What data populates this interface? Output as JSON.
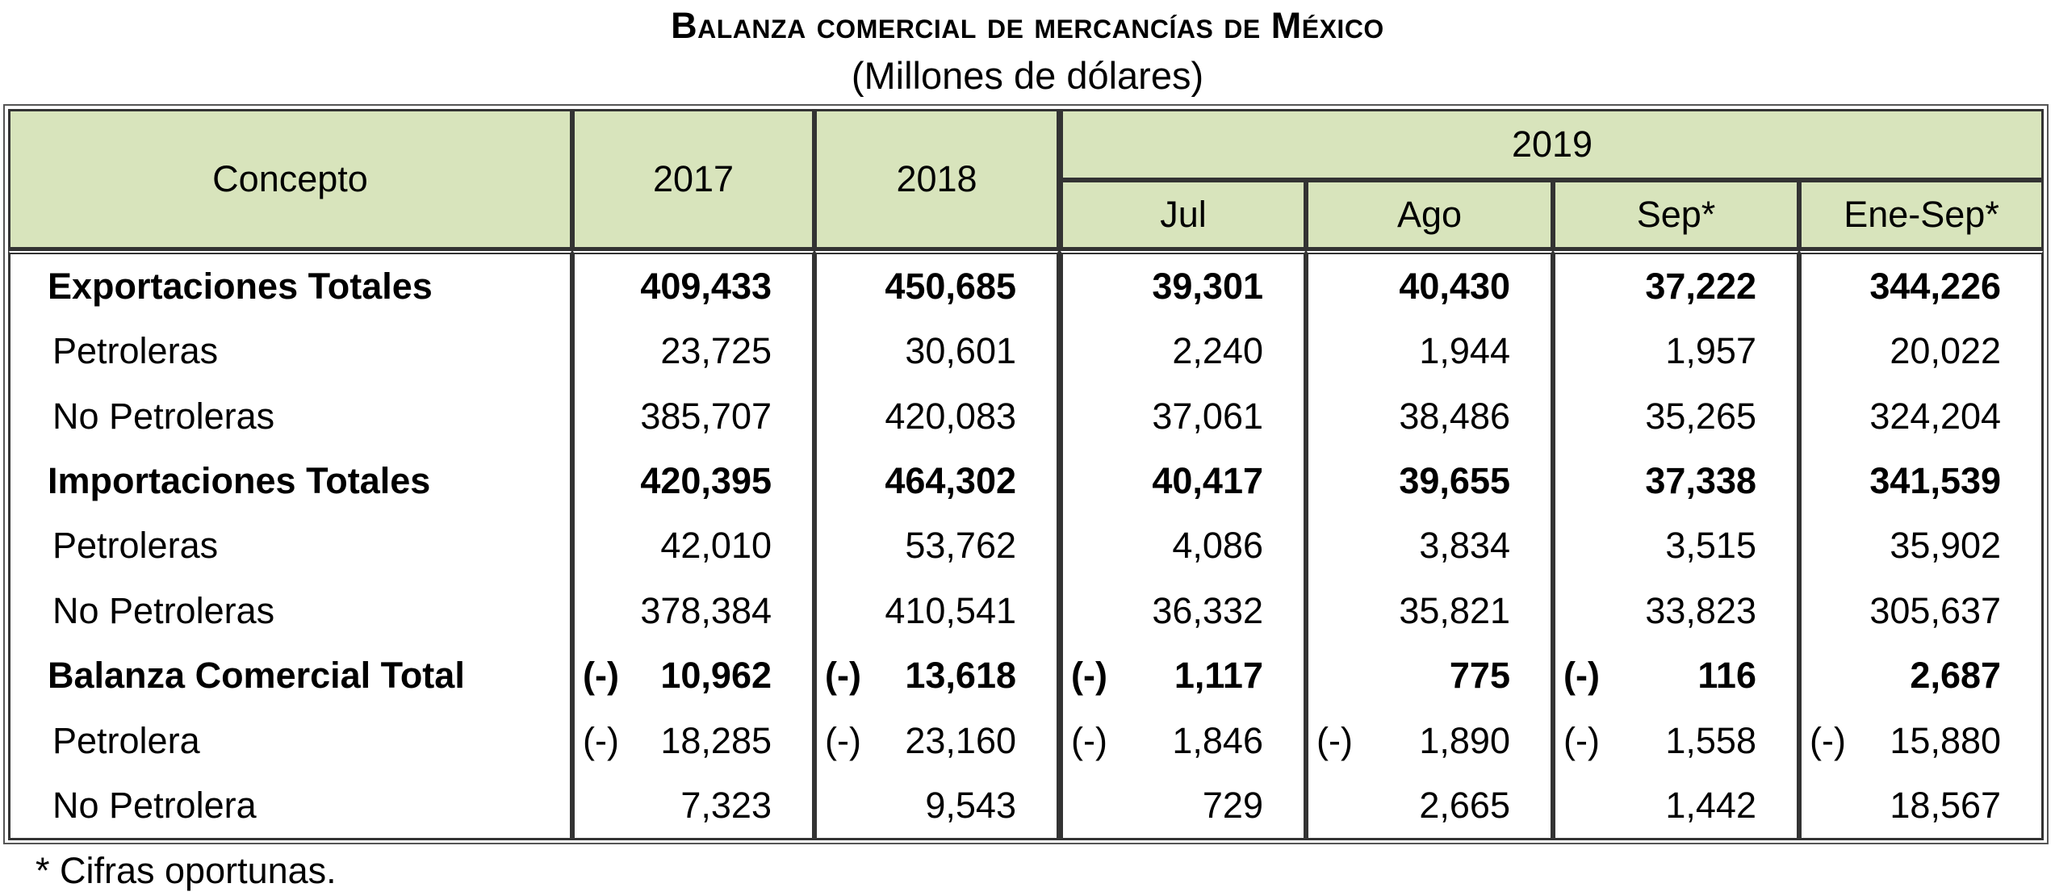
{
  "title": "Balanza comercial de mercancías de México",
  "subtitle": "(Millones de dólares)",
  "header": {
    "concepto": "Concepto",
    "y2017": "2017",
    "y2018": "2018",
    "y2019": "2019",
    "months": [
      "Jul",
      "Ago",
      "Sep*",
      "Ene-Sep*"
    ]
  },
  "rows": [
    {
      "label": "Exportaciones Totales",
      "bold": true,
      "values": [
        {
          "neg": "",
          "v": "409,433"
        },
        {
          "neg": "",
          "v": "450,685"
        },
        {
          "neg": "",
          "v": "39,301"
        },
        {
          "neg": "",
          "v": "40,430"
        },
        {
          "neg": "",
          "v": "37,222"
        },
        {
          "neg": "",
          "v": "344,226"
        }
      ]
    },
    {
      "label": "Petroleras",
      "bold": false,
      "values": [
        {
          "neg": "",
          "v": "23,725"
        },
        {
          "neg": "",
          "v": "30,601"
        },
        {
          "neg": "",
          "v": "2,240"
        },
        {
          "neg": "",
          "v": "1,944"
        },
        {
          "neg": "",
          "v": "1,957"
        },
        {
          "neg": "",
          "v": "20,022"
        }
      ]
    },
    {
      "label": "No Petroleras",
      "bold": false,
      "values": [
        {
          "neg": "",
          "v": "385,707"
        },
        {
          "neg": "",
          "v": "420,083"
        },
        {
          "neg": "",
          "v": "37,061"
        },
        {
          "neg": "",
          "v": "38,486"
        },
        {
          "neg": "",
          "v": "35,265"
        },
        {
          "neg": "",
          "v": "324,204"
        }
      ]
    },
    {
      "label": "Importaciones Totales",
      "bold": true,
      "values": [
        {
          "neg": "",
          "v": "420,395"
        },
        {
          "neg": "",
          "v": "464,302"
        },
        {
          "neg": "",
          "v": "40,417"
        },
        {
          "neg": "",
          "v": "39,655"
        },
        {
          "neg": "",
          "v": "37,338"
        },
        {
          "neg": "",
          "v": "341,539"
        }
      ]
    },
    {
      "label": "Petroleras",
      "bold": false,
      "values": [
        {
          "neg": "",
          "v": "42,010"
        },
        {
          "neg": "",
          "v": "53,762"
        },
        {
          "neg": "",
          "v": "4,086"
        },
        {
          "neg": "",
          "v": "3,834"
        },
        {
          "neg": "",
          "v": "3,515"
        },
        {
          "neg": "",
          "v": "35,902"
        }
      ]
    },
    {
      "label": "No Petroleras",
      "bold": false,
      "values": [
        {
          "neg": "",
          "v": "378,384"
        },
        {
          "neg": "",
          "v": "410,541"
        },
        {
          "neg": "",
          "v": "36,332"
        },
        {
          "neg": "",
          "v": "35,821"
        },
        {
          "neg": "",
          "v": "33,823"
        },
        {
          "neg": "",
          "v": "305,637"
        }
      ]
    },
    {
      "label": "Balanza Comercial Total",
      "bold": true,
      "values": [
        {
          "neg": "(-)",
          "v": "10,962"
        },
        {
          "neg": "(-)",
          "v": "13,618"
        },
        {
          "neg": "(-)",
          "v": "1,117"
        },
        {
          "neg": "",
          "v": "775"
        },
        {
          "neg": "(-)",
          "v": "116"
        },
        {
          "neg": "",
          "v": "2,687"
        }
      ]
    },
    {
      "label": "Petrolera",
      "bold": false,
      "values": [
        {
          "neg": "(-)",
          "v": "18,285"
        },
        {
          "neg": "(-)",
          "v": "23,160"
        },
        {
          "neg": "(-)",
          "v": "1,846"
        },
        {
          "neg": "(-)",
          "v": "1,890"
        },
        {
          "neg": "(-)",
          "v": "1,558"
        },
        {
          "neg": "(-)",
          "v": "15,880"
        }
      ]
    },
    {
      "label": "No Petrolera",
      "bold": false,
      "values": [
        {
          "neg": "",
          "v": "7,323"
        },
        {
          "neg": "",
          "v": "9,543"
        },
        {
          "neg": "",
          "v": "729"
        },
        {
          "neg": "",
          "v": "2,665"
        },
        {
          "neg": "",
          "v": "1,442"
        },
        {
          "neg": "",
          "v": "18,567"
        }
      ]
    }
  ],
  "note": "* Cifras oportunas."
}
